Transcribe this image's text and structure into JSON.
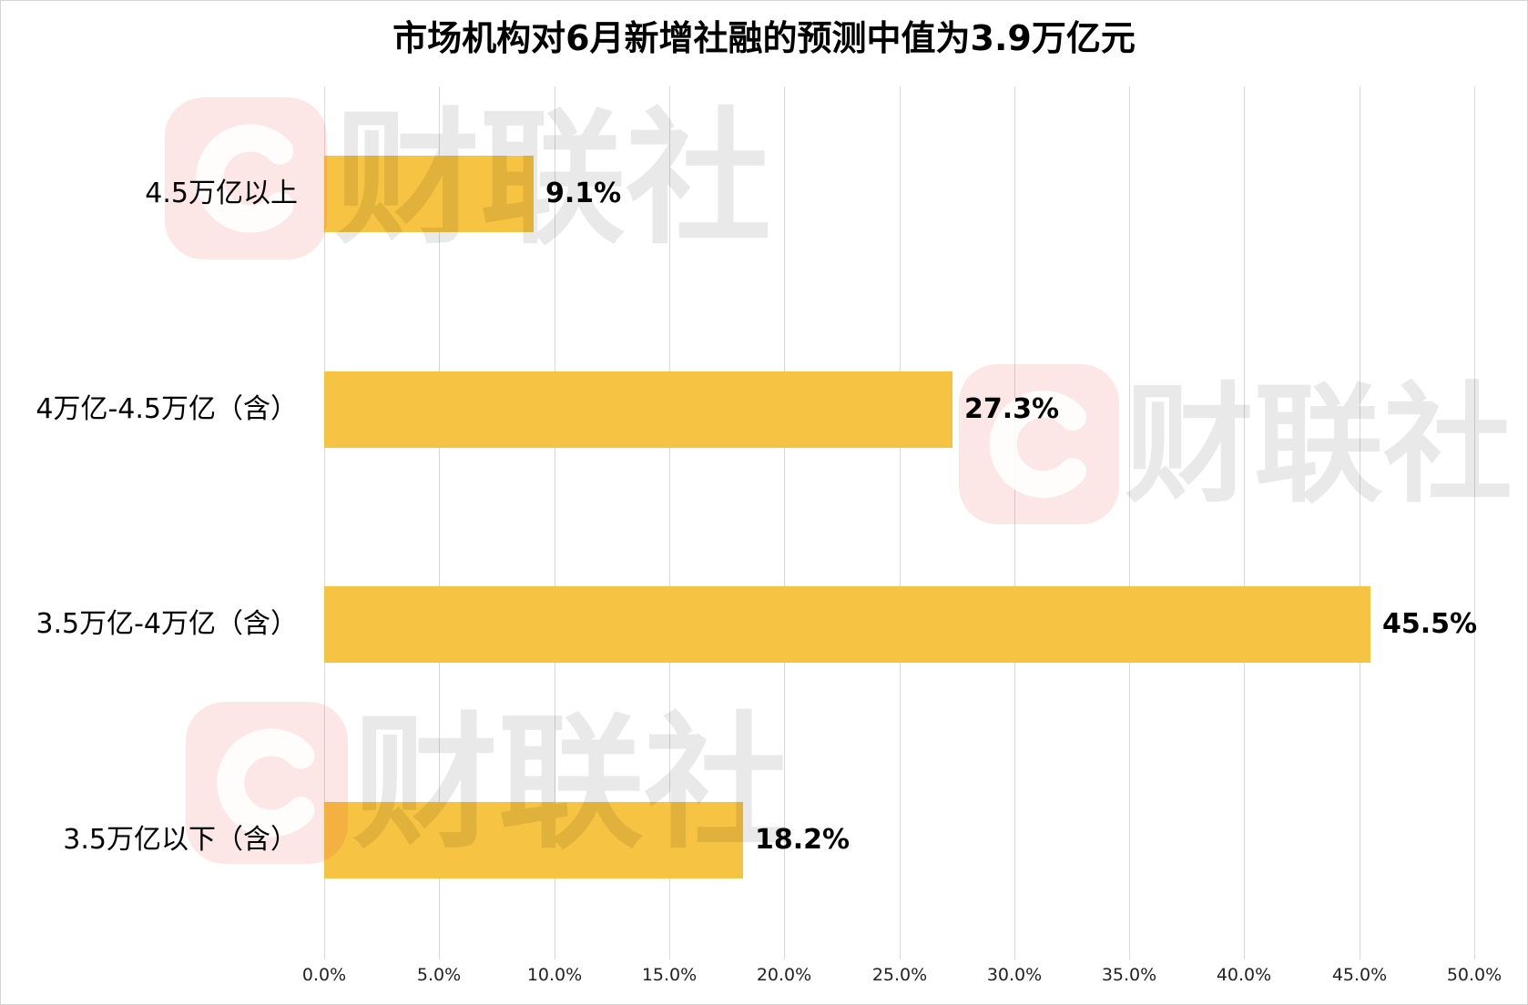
{
  "chart_data": {
    "type": "bar",
    "orientation": "horizontal",
    "title": "市场机构对6月新增社融的预测中值为3.9万亿元",
    "categories": [
      "4.5万亿以上",
      "4万亿-4.5万亿（含）",
      "3.5万亿-4万亿（含）",
      "3.5万亿以下（含）"
    ],
    "values": [
      9.1,
      27.3,
      45.5,
      18.2
    ],
    "data_labels": [
      "9.1%",
      "27.3%",
      "45.5%",
      "18.2%"
    ],
    "xlabel": "",
    "ylabel": "",
    "xlim": [
      0,
      50
    ],
    "x_tick_labels": [
      "0.0%",
      "5.0%",
      "10.0%",
      "15.0%",
      "20.0%",
      "25.0%",
      "30.0%",
      "35.0%",
      "40.0%",
      "45.0%",
      "50.0%"
    ],
    "grid": "vertical",
    "legend": "none",
    "bar_color": "#F6C342",
    "gridline_color": "#D9D9D9"
  },
  "watermark": {
    "text": "财联社",
    "logo_icon": "c-logo-icon",
    "logo_color": "#E8403F"
  }
}
